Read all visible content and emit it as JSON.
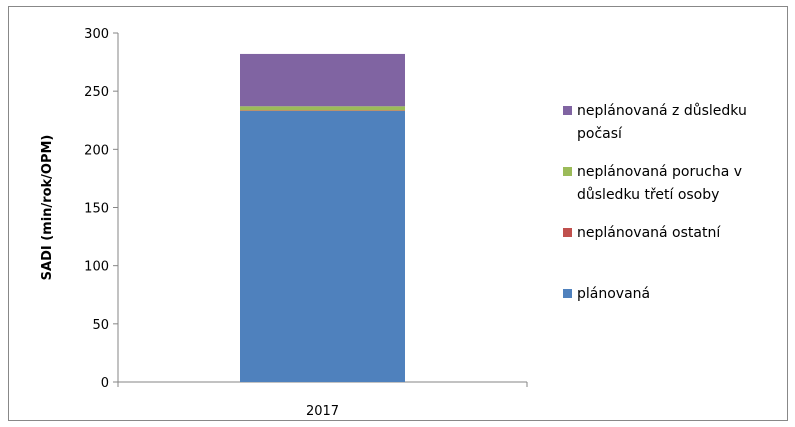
{
  "chart_data": {
    "type": "bar",
    "stacked": true,
    "categories": [
      "2017"
    ],
    "ylabel": "SADI (min/rok/OPM)",
    "xlabel": "",
    "ylim": [
      0,
      300
    ],
    "yticks": [
      0,
      50,
      100,
      150,
      200,
      250,
      300
    ],
    "grid": false,
    "legend_position": "right",
    "series": [
      {
        "name": "plánovaná",
        "color": "#4f81bd",
        "values": [
          233
        ]
      },
      {
        "name": "neplánovaná ostatní",
        "color": "#c0504d",
        "values": [
          0.5
        ]
      },
      {
        "name": "neplánovaná porucha v důsledku třetí osoby",
        "color": "#9bbb59",
        "values": [
          3.5
        ]
      },
      {
        "name": "neplánovaná z důsledku počasí",
        "color": "#8064a2",
        "values": [
          45
        ]
      }
    ],
    "legend": [
      {
        "lines": [
          "neplánovaná z důsledku",
          "počasí"
        ],
        "color": "#8064a2"
      },
      {
        "lines": [
          "neplánovaná porucha v",
          "důsledku třetí osoby"
        ],
        "color": "#9bbb59"
      },
      {
        "lines": [
          "neplánovaná ostatní"
        ],
        "color": "#c0504d"
      },
      {
        "lines": [
          "plánovaná"
        ],
        "color": "#4f81bd"
      }
    ]
  }
}
